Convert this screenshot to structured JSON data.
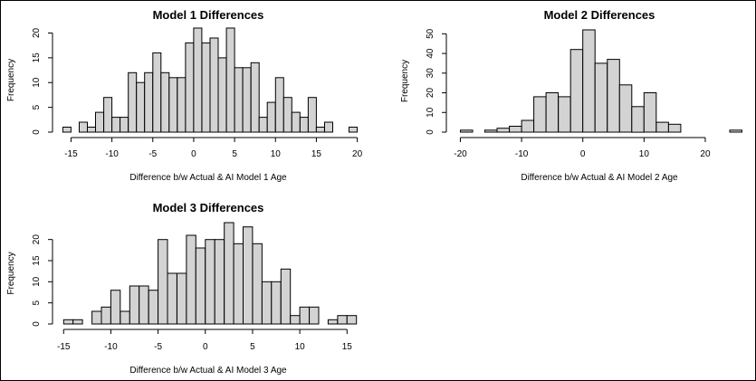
{
  "chart_data": [
    {
      "type": "bar",
      "title": "Model 1 Differences",
      "xlabel": "Difference b/w Actual & AI Model 1 Age",
      "ylabel": "Frequency",
      "bin_width": 1,
      "bins_start": [
        -16,
        -15,
        -14,
        -13,
        -12,
        -11,
        -10,
        -9,
        -8,
        -7,
        -6,
        -5,
        -4,
        -3,
        -2,
        -1,
        0,
        1,
        2,
        3,
        4,
        5,
        6,
        7,
        8,
        9,
        10,
        11,
        12,
        13,
        14,
        15,
        16,
        17,
        18,
        19
      ],
      "values": [
        1,
        0,
        2,
        1,
        4,
        7,
        3,
        3,
        12,
        10,
        12,
        16,
        12,
        11,
        11,
        18,
        21,
        18,
        19,
        15,
        21,
        13,
        13,
        14,
        3,
        6,
        11,
        7,
        4,
        3,
        7,
        1,
        2,
        0,
        0,
        1
      ],
      "xticks": [
        -15,
        -10,
        -5,
        0,
        5,
        10,
        15,
        20
      ],
      "yticks": [
        0,
        5,
        10,
        15,
        20
      ],
      "xlim": [
        -16.6,
        20.6
      ],
      "ylim": [
        0,
        21
      ]
    },
    {
      "type": "bar",
      "title": "Model 2 Differences",
      "xlabel": "Difference b/w Actual & AI Model 2 Age",
      "ylabel": "Frequency",
      "bin_width": 2,
      "bins_start": [
        -20,
        -18,
        -16,
        -14,
        -12,
        -10,
        -8,
        -6,
        -4,
        -2,
        0,
        2,
        4,
        6,
        8,
        10,
        12,
        14,
        16,
        18,
        20,
        22,
        24
      ],
      "values": [
        1,
        0,
        1,
        2,
        3,
        6,
        18,
        20,
        18,
        42,
        52,
        35,
        37,
        24,
        13,
        20,
        5,
        4,
        0,
        0,
        0,
        0,
        1
      ],
      "xticks": [
        -20,
        -10,
        0,
        10,
        20
      ],
      "yticks": [
        0,
        10,
        20,
        30,
        40,
        50
      ],
      "xlim": [
        -21.4,
        27.4
      ],
      "ylim": [
        0,
        52
      ]
    },
    {
      "type": "bar",
      "title": "Model 3 Differences",
      "xlabel": "Difference b/w Actual & AI Model 3 Age",
      "ylabel": "Frequency",
      "bin_width": 1,
      "bins_start": [
        -15,
        -14,
        -13,
        -12,
        -11,
        -10,
        -9,
        -8,
        -7,
        -6,
        -5,
        -4,
        -3,
        -2,
        -1,
        0,
        1,
        2,
        3,
        4,
        5,
        6,
        7,
        8,
        9,
        10,
        11,
        12,
        13,
        14,
        15
      ],
      "values": [
        1,
        1,
        0,
        3,
        4,
        8,
        3,
        9,
        9,
        8,
        20,
        12,
        12,
        21,
        18,
        20,
        20,
        24,
        19,
        23,
        19,
        10,
        10,
        13,
        2,
        4,
        4,
        0,
        1,
        2,
        2
      ],
      "xticks": [
        -15,
        -10,
        -5,
        0,
        5,
        10,
        15
      ],
      "yticks": [
        0,
        5,
        10,
        15,
        20
      ],
      "xlim": [
        -15.6,
        16.6
      ],
      "ylim": [
        0,
        24
      ]
    }
  ]
}
